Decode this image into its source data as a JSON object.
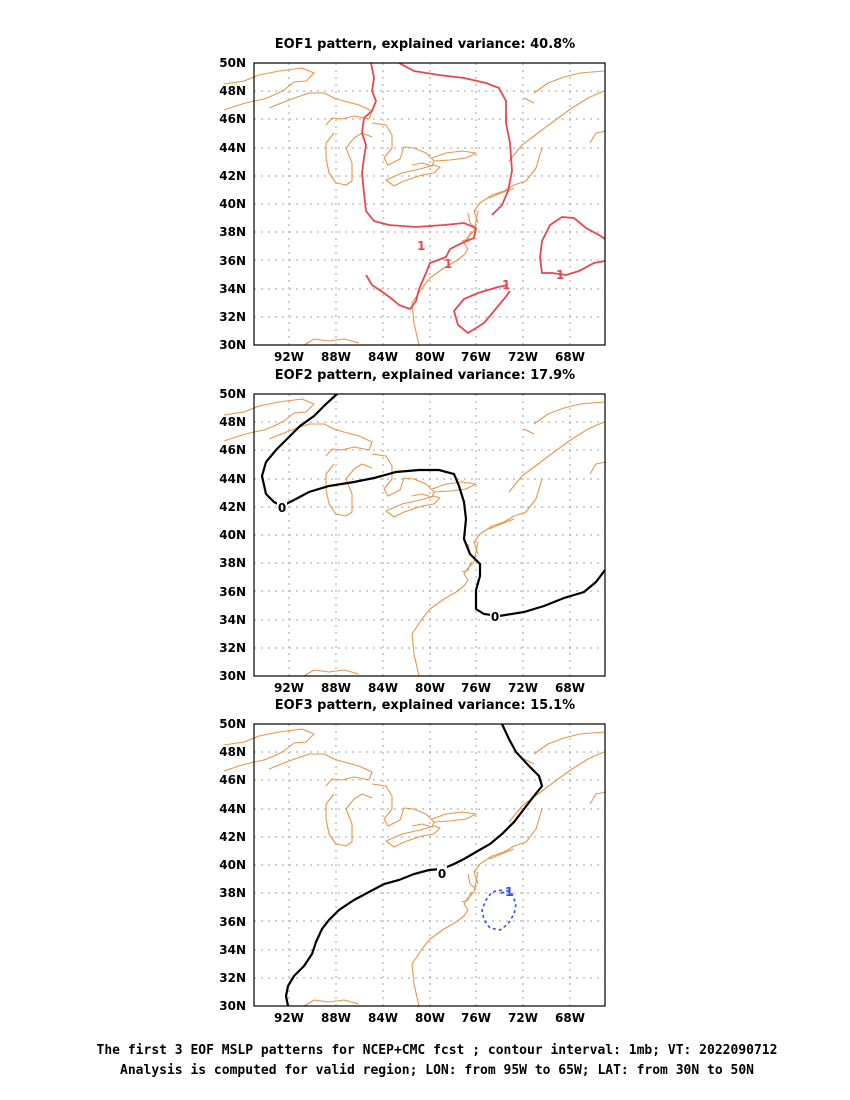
{
  "panels": [
    {
      "title": "EOF1 pattern, explained variance: 40.8%",
      "explained_variance_pct": 40.8,
      "contours": [
        {
          "value": "1",
          "color": "#e8474d",
          "dashed": false
        },
        {
          "value": "1",
          "color": "#e8474d",
          "dashed": false
        },
        {
          "value": "1",
          "color": "#e8474d",
          "dashed": false
        },
        {
          "value": "1",
          "color": "#e8474d",
          "dashed": false
        }
      ]
    },
    {
      "title": "EOF2 pattern, explained variance: 17.9%",
      "explained_variance_pct": 17.9,
      "contours": [
        {
          "value": "0",
          "color": "#000000",
          "dashed": false
        },
        {
          "value": "0",
          "color": "#000000",
          "dashed": false
        }
      ]
    },
    {
      "title": "EOF3 pattern, explained variance: 15.1%",
      "explained_variance_pct": 15.1,
      "contours": [
        {
          "value": "0",
          "color": "#000000",
          "dashed": false
        },
        {
          "value": "-1",
          "color": "#2b55e0",
          "dashed": true
        }
      ]
    }
  ],
  "axes": {
    "lat_labels": [
      "50N",
      "48N",
      "46N",
      "44N",
      "42N",
      "40N",
      "38N",
      "36N",
      "34N",
      "32N",
      "30N"
    ],
    "lon_labels": [
      "92W",
      "88W",
      "84W",
      "80W",
      "76W",
      "72W",
      "68W"
    ]
  },
  "colors": {
    "coastline": "#e8954a",
    "positive_contour": "#e8474d",
    "zero_contour": "#000000",
    "negative_contour": "#2b55e0"
  },
  "caption": {
    "line1": "The first 3 EOF MSLP patterns for NCEP+CMC fcst ; contour interval: 1mb; VT: 2022090712",
    "line2": "Analysis is computed for valid region; LON: from 95W to 65W; LAT: from 30N to 50N"
  }
}
